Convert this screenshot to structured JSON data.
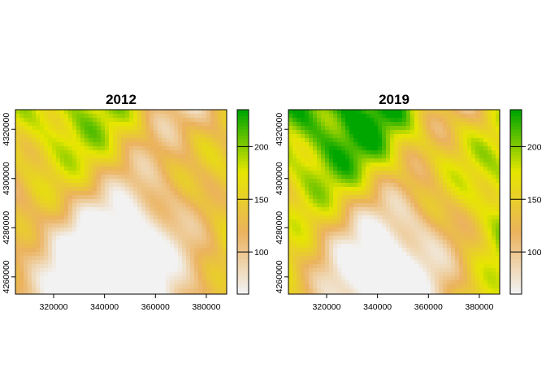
{
  "chart_data": [
    {
      "type": "heatmap",
      "title": "2012",
      "xlabel": "",
      "ylabel": "",
      "x_ticks": [
        320000,
        340000,
        360000,
        380000
      ],
      "y_ticks": [
        4260000,
        4280000,
        4300000,
        4320000
      ],
      "xlim": [
        305000,
        388000
      ],
      "ylim": [
        4253000,
        4328000
      ],
      "legend_ticks": [
        100,
        150,
        200
      ],
      "legend_range": [
        60,
        235
      ],
      "legend_placement": "right",
      "palette": [
        "#F2F2F2",
        "#EBB25E",
        "#E6E600",
        "#00A600"
      ]
    },
    {
      "type": "heatmap",
      "title": "2019",
      "xlabel": "",
      "ylabel": "",
      "x_ticks": [
        320000,
        340000,
        360000,
        380000
      ],
      "y_ticks": [
        4260000,
        4280000,
        4300000,
        4320000
      ],
      "xlim": [
        305000,
        388000
      ],
      "ylim": [
        4253000,
        4328000
      ],
      "legend_ticks": [
        100,
        150,
        200
      ],
      "legend_range": [
        60,
        235
      ],
      "legend_placement": "right",
      "palette": [
        "#F2F2F2",
        "#EBB25E",
        "#E6E600",
        "#00A600"
      ]
    }
  ]
}
